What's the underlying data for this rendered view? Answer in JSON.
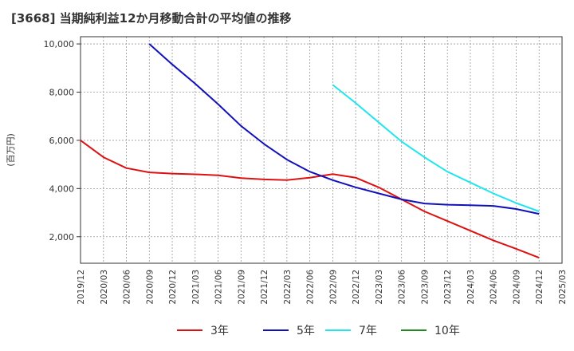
{
  "chart_data": {
    "type": "line",
    "title": "[3668]  当期純利益12か月移動合計の平均値の推移",
    "ylabel": "(百万円)",
    "xlabel": "",
    "ylim": [
      900,
      10300
    ],
    "yticks": [
      2000,
      4000,
      6000,
      8000,
      10000
    ],
    "ytick_labels": [
      "2,000",
      "4,000",
      "6,000",
      "8,000",
      "10,000"
    ],
    "xlim": [
      "2019/12",
      "2025/03"
    ],
    "xtick_labels": [
      "2019/12",
      "2020/03",
      "2020/06",
      "2020/09",
      "2020/12",
      "2021/03",
      "2021/06",
      "2021/09",
      "2021/12",
      "2022/03",
      "2022/06",
      "2022/09",
      "2022/12",
      "2023/03",
      "2023/06",
      "2023/09",
      "2023/12",
      "2024/03",
      "2024/06",
      "2024/09",
      "2024/12",
      "2025/03"
    ],
    "grid": true,
    "legend_position": "bottom",
    "series": [
      {
        "name": "3年",
        "color": "#dd1111",
        "points": [
          [
            "2019/12",
            6000
          ],
          [
            "2020/03",
            5300
          ],
          [
            "2020/06",
            4850
          ],
          [
            "2020/09",
            4670
          ],
          [
            "2020/12",
            4620
          ],
          [
            "2021/03",
            4590
          ],
          [
            "2021/06",
            4550
          ],
          [
            "2021/09",
            4430
          ],
          [
            "2021/12",
            4380
          ],
          [
            "2022/03",
            4350
          ],
          [
            "2022/06",
            4450
          ],
          [
            "2022/09",
            4600
          ],
          [
            "2022/12",
            4450
          ],
          [
            "2023/03",
            4050
          ],
          [
            "2023/06",
            3550
          ],
          [
            "2023/09",
            3050
          ],
          [
            "2023/12",
            2650
          ],
          [
            "2024/03",
            2250
          ],
          [
            "2024/06",
            1850
          ],
          [
            "2024/09",
            1500
          ],
          [
            "2024/12",
            1130
          ]
        ]
      },
      {
        "name": "5年",
        "color": "#1111bb",
        "points": [
          [
            "2020/09",
            10000
          ],
          [
            "2020/12",
            9150
          ],
          [
            "2021/03",
            8350
          ],
          [
            "2021/06",
            7500
          ],
          [
            "2021/09",
            6600
          ],
          [
            "2021/12",
            5850
          ],
          [
            "2022/03",
            5200
          ],
          [
            "2022/06",
            4700
          ],
          [
            "2022/09",
            4350
          ],
          [
            "2022/12",
            4050
          ],
          [
            "2023/03",
            3800
          ],
          [
            "2023/06",
            3550
          ],
          [
            "2023/09",
            3380
          ],
          [
            "2023/12",
            3330
          ],
          [
            "2024/03",
            3310
          ],
          [
            "2024/06",
            3280
          ],
          [
            "2024/09",
            3150
          ],
          [
            "2024/12",
            2950
          ]
        ]
      },
      {
        "name": "7年",
        "color": "#22e5ee",
        "points": [
          [
            "2022/09",
            8300
          ],
          [
            "2022/12",
            7550
          ],
          [
            "2023/03",
            6750
          ],
          [
            "2023/06",
            5950
          ],
          [
            "2023/09",
            5300
          ],
          [
            "2023/12",
            4700
          ],
          [
            "2024/03",
            4250
          ],
          [
            "2024/06",
            3800
          ],
          [
            "2024/09",
            3400
          ],
          [
            "2024/12",
            3050
          ]
        ]
      },
      {
        "name": "10年",
        "color": "#228822",
        "points": []
      }
    ]
  }
}
